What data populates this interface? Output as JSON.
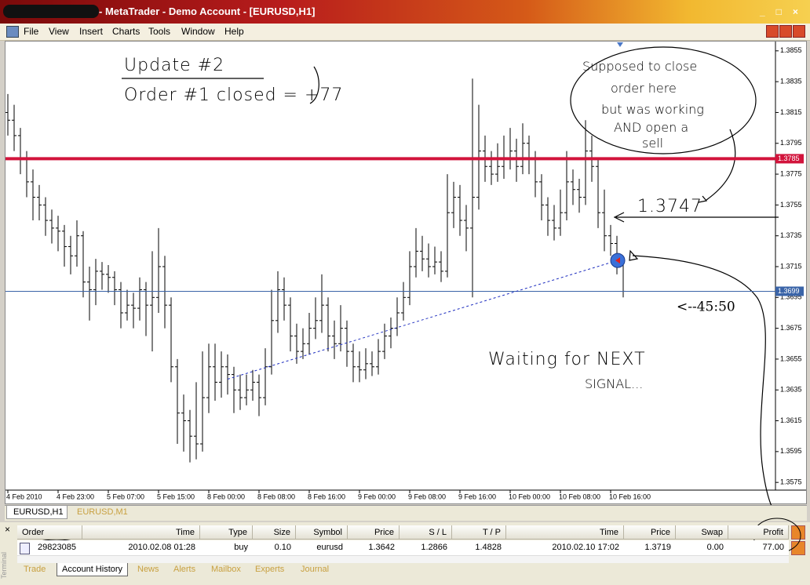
{
  "window": {
    "title": "- MetaTrader - Demo Account - [EURUSD,H1]",
    "menu": [
      "File",
      "View",
      "Insert",
      "Charts",
      "Tools",
      "Window",
      "Help"
    ]
  },
  "chart_data": {
    "type": "ohlc",
    "ohlc": [
      [
        1.3815,
        1.3827,
        1.38,
        1.381
      ],
      [
        1.381,
        1.382,
        1.379,
        1.38
      ],
      [
        1.38,
        1.3805,
        1.3775,
        1.3785
      ],
      [
        1.3785,
        1.379,
        1.376,
        1.377
      ],
      [
        1.377,
        1.3778,
        1.3745,
        1.376
      ],
      [
        1.376,
        1.3768,
        1.3745,
        1.3755
      ],
      [
        1.3755,
        1.376,
        1.3735,
        1.3745
      ],
      [
        1.3745,
        1.3752,
        1.373,
        1.374
      ],
      [
        1.374,
        1.3748,
        1.3725,
        1.3738
      ],
      [
        1.3738,
        1.3742,
        1.3715,
        1.3728
      ],
      [
        1.3728,
        1.3735,
        1.371,
        1.3722
      ],
      [
        1.3722,
        1.3745,
        1.3715,
        1.3735
      ],
      [
        1.3735,
        1.3738,
        1.3695,
        1.3705
      ],
      [
        1.3705,
        1.3715,
        1.368,
        1.37
      ],
      [
        1.37,
        1.372,
        1.369,
        1.3712
      ],
      [
        1.3712,
        1.3718,
        1.37,
        1.371
      ],
      [
        1.371,
        1.3716,
        1.3698,
        1.3708
      ],
      [
        1.3708,
        1.3712,
        1.369,
        1.37
      ],
      [
        1.37,
        1.3705,
        1.3675,
        1.3685
      ],
      [
        1.3685,
        1.37,
        1.368,
        1.369
      ],
      [
        1.369,
        1.3698,
        1.3675,
        1.3688
      ],
      [
        1.3688,
        1.3708,
        1.368,
        1.37
      ],
      [
        1.37,
        1.3705,
        1.367,
        1.369
      ],
      [
        1.369,
        1.3725,
        1.366,
        1.3695
      ],
      [
        1.3695,
        1.374,
        1.3685,
        1.3715
      ],
      [
        1.3715,
        1.3722,
        1.3675,
        1.369
      ],
      [
        1.369,
        1.3695,
        1.364,
        1.365
      ],
      [
        1.365,
        1.3655,
        1.36,
        1.362
      ],
      [
        1.362,
        1.3632,
        1.3595,
        1.3615
      ],
      [
        1.3615,
        1.3622,
        1.3588,
        1.3605
      ],
      [
        1.3605,
        1.364,
        1.359,
        1.36
      ],
      [
        1.36,
        1.366,
        1.3595,
        1.363
      ],
      [
        1.363,
        1.3665,
        1.362,
        1.365
      ],
      [
        1.365,
        1.3665,
        1.3628,
        1.364
      ],
      [
        1.364,
        1.366,
        1.363,
        1.365
      ],
      [
        1.365,
        1.3658,
        1.3632,
        1.3645
      ],
      [
        1.3645,
        1.365,
        1.362,
        1.3635
      ],
      [
        1.3635,
        1.3645,
        1.3622,
        1.363
      ],
      [
        1.363,
        1.3645,
        1.3625,
        1.3635
      ],
      [
        1.3635,
        1.3648,
        1.3628,
        1.364
      ],
      [
        1.364,
        1.3645,
        1.3618,
        1.363
      ],
      [
        1.363,
        1.3662,
        1.3625,
        1.365
      ],
      [
        1.365,
        1.37,
        1.3645,
        1.368
      ],
      [
        1.368,
        1.3712,
        1.3672,
        1.37
      ],
      [
        1.37,
        1.3708,
        1.368,
        1.369
      ],
      [
        1.369,
        1.3695,
        1.366,
        1.367
      ],
      [
        1.367,
        1.3678,
        1.3652,
        1.366
      ],
      [
        1.366,
        1.3675,
        1.3655,
        1.3665
      ],
      [
        1.3665,
        1.3685,
        1.3658,
        1.3675
      ],
      [
        1.3675,
        1.3695,
        1.3668,
        1.368
      ],
      [
        1.368,
        1.371,
        1.3672,
        1.369
      ],
      [
        1.369,
        1.3695,
        1.366,
        1.367
      ],
      [
        1.367,
        1.368,
        1.3655,
        1.3665
      ],
      [
        1.3665,
        1.369,
        1.366,
        1.3675
      ],
      [
        1.3675,
        1.368,
        1.365,
        1.366
      ],
      [
        1.366,
        1.3665,
        1.364,
        1.365
      ],
      [
        1.365,
        1.366,
        1.364,
        1.3648
      ],
      [
        1.3648,
        1.3662,
        1.3642,
        1.3652
      ],
      [
        1.3652,
        1.366,
        1.3644,
        1.365
      ],
      [
        1.365,
        1.3668,
        1.3645,
        1.366
      ],
      [
        1.366,
        1.3678,
        1.3655,
        1.367
      ],
      [
        1.367,
        1.3682,
        1.3662,
        1.3675
      ],
      [
        1.3675,
        1.3695,
        1.367,
        1.3685
      ],
      [
        1.3685,
        1.3705,
        1.368,
        1.3695
      ],
      [
        1.3695,
        1.3725,
        1.369,
        1.3715
      ],
      [
        1.3715,
        1.374,
        1.3708,
        1.3725
      ],
      [
        1.3725,
        1.3735,
        1.3712,
        1.372
      ],
      [
        1.372,
        1.373,
        1.3708,
        1.3715
      ],
      [
        1.3715,
        1.3728,
        1.371,
        1.3718
      ],
      [
        1.3718,
        1.3725,
        1.3705,
        1.3712
      ],
      [
        1.3712,
        1.3775,
        1.3708,
        1.375
      ],
      [
        1.375,
        1.377,
        1.374,
        1.376
      ],
      [
        1.376,
        1.3768,
        1.3735,
        1.3745
      ],
      [
        1.3745,
        1.3755,
        1.3725,
        1.374
      ],
      [
        1.374,
        1.3837,
        1.3695,
        1.376
      ],
      [
        1.376,
        1.382,
        1.3752,
        1.379
      ],
      [
        1.379,
        1.38,
        1.377,
        1.378
      ],
      [
        1.378,
        1.379,
        1.3768,
        1.3775
      ],
      [
        1.3775,
        1.3795,
        1.377,
        1.378
      ],
      [
        1.378,
        1.38,
        1.3772,
        1.3785
      ],
      [
        1.3785,
        1.3805,
        1.3778,
        1.379
      ],
      [
        1.379,
        1.3798,
        1.377,
        1.378
      ],
      [
        1.378,
        1.3808,
        1.3775,
        1.3795
      ],
      [
        1.3795,
        1.38,
        1.3775,
        1.3785
      ],
      [
        1.3785,
        1.379,
        1.376,
        1.377
      ],
      [
        1.377,
        1.3775,
        1.3745,
        1.3755
      ],
      [
        1.3755,
        1.376,
        1.3735,
        1.3745
      ],
      [
        1.3745,
        1.3755,
        1.3732,
        1.374
      ],
      [
        1.374,
        1.3765,
        1.3735,
        1.375
      ],
      [
        1.375,
        1.379,
        1.3745,
        1.377
      ],
      [
        1.377,
        1.3778,
        1.3755,
        1.3765
      ],
      [
        1.3765,
        1.3772,
        1.375,
        1.376
      ],
      [
        1.376,
        1.381,
        1.3755,
        1.379
      ],
      [
        1.379,
        1.38,
        1.377,
        1.378
      ],
      [
        1.378,
        1.3785,
        1.374,
        1.375
      ],
      [
        1.375,
        1.3765,
        1.3725,
        1.3735
      ],
      [
        1.3735,
        1.3742,
        1.3722,
        1.373
      ],
      [
        1.373,
        1.3735,
        1.371,
        1.3718
      ],
      [
        1.3718,
        1.3722,
        1.3695,
        1.3699
      ]
    ],
    "xticks": [
      {
        "value": 0,
        "label": "4 Feb 2010"
      },
      {
        "value": 8,
        "label": "4 Feb 23:00"
      },
      {
        "value": 16,
        "label": "5 Feb 07:00"
      },
      {
        "value": 24,
        "label": "5 Feb 15:00"
      },
      {
        "value": 32,
        "label": "8 Feb 00:00"
      },
      {
        "value": 40,
        "label": "8 Feb 08:00"
      },
      {
        "value": 48,
        "label": "8 Feb 16:00"
      },
      {
        "value": 56,
        "label": "9 Feb 00:00"
      },
      {
        "value": 64,
        "label": "9 Feb 08:00"
      },
      {
        "value": 72,
        "label": "9 Feb 16:00"
      },
      {
        "value": 80,
        "label": "10 Feb 00:00"
      },
      {
        "value": 88,
        "label": "10 Feb 08:00"
      },
      {
        "value": 96,
        "label": "10 Feb 16:00"
      }
    ],
    "ylim": [
      1.357,
      1.386
    ],
    "yticks": [
      1.3855,
      1.3835,
      1.3815,
      1.3795,
      1.3775,
      1.3755,
      1.3735,
      1.3715,
      1.3695,
      1.3675,
      1.3655,
      1.3635,
      1.3615,
      1.3595,
      1.3575
    ],
    "color": "#000000",
    "lines": [
      {
        "value": 1.3785,
        "color": "#d2143c"
      },
      {
        "value": 1.3699,
        "color": "#3a64a8"
      }
    ],
    "annotations": [
      "Update #2",
      "Order #1 closed = +77",
      [
        "Supposed to close",
        "order here",
        "but was working",
        "AND open a",
        "sell"
      ],
      "1.3747",
      "<--45:50",
      [
        "Waiting for NEXT",
        "SIGNAL..."
      ]
    ]
  },
  "chart_tabs": [
    "EURUSD,H1",
    "EURUSD,M1"
  ],
  "terminal": {
    "side_label": "Terminal",
    "columns": [
      "Order",
      "Time",
      "Type",
      "Size",
      "Symbol",
      "Price",
      "S / L",
      "T / P",
      "Time",
      "Price",
      "Swap",
      "Profit"
    ],
    "rows": [
      [
        "29823085",
        "2010.02.08 01:28",
        "buy",
        "0.10",
        "eurusd",
        1.3642,
        1.2866,
        1.4828,
        "2010.02.10 17:02",
        1.3719,
        "0.00",
        "77.00"
      ]
    ],
    "tabs": [
      "Trade",
      "Account History",
      "News",
      "Alerts",
      "Mailbox",
      "Experts",
      "Journal"
    ]
  }
}
